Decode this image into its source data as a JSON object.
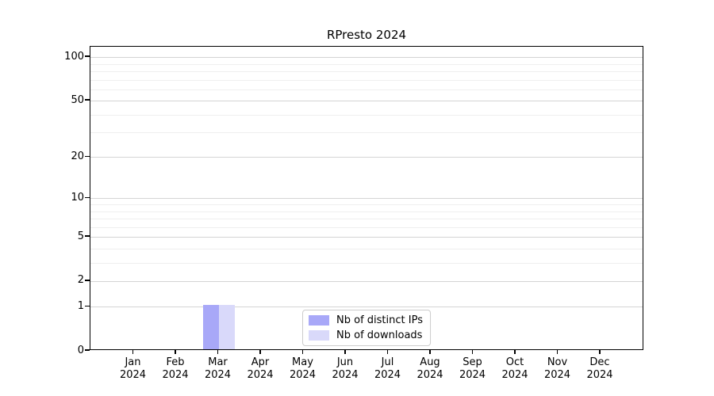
{
  "chart_data": {
    "type": "bar",
    "title": "RPresto 2024",
    "categories": [
      "Jan 2024",
      "Feb 2024",
      "Mar 2024",
      "Apr 2024",
      "May 2024",
      "Jun 2024",
      "Jul 2024",
      "Aug 2024",
      "Sep 2024",
      "Oct 2024",
      "Nov 2024",
      "Dec 2024"
    ],
    "series": [
      {
        "name": "Nb of distinct IPs",
        "color": "#a8a8f8",
        "values": [
          0,
          0,
          1,
          0,
          0,
          0,
          0,
          0,
          0,
          0,
          0,
          0
        ]
      },
      {
        "name": "Nb of downloads",
        "color": "#d9d9fa",
        "values": [
          0,
          0,
          1,
          0,
          0,
          0,
          0,
          0,
          0,
          0,
          0,
          0
        ]
      }
    ],
    "yscale": "log1p",
    "yticks": [
      0,
      1,
      2,
      5,
      10,
      20,
      50,
      100
    ],
    "minor_yticks": [
      3,
      4,
      6,
      7,
      8,
      9,
      30,
      40,
      60,
      70,
      80,
      90
    ],
    "ylim": [
      0,
      118
    ],
    "xlabel": "",
    "ylabel": "",
    "grid": "horizontal",
    "legend_position": "bottom-center"
  },
  "colors": {
    "major_gridline": "#d4d4d4",
    "minor_gridline": "#efefef",
    "axis": "#000000",
    "legend_border": "#cccccc",
    "background": "#ffffff"
  }
}
